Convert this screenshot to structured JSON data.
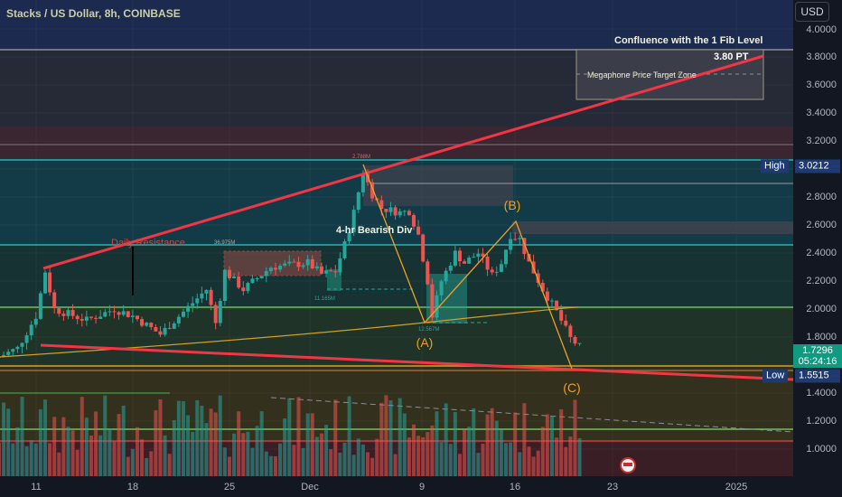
{
  "header": {
    "title": "Stacks / US Dollar, 8h, COINBASE",
    "currency_button": "USD"
  },
  "price_axis": {
    "ticks": [
      "4.0000",
      "3.8000",
      "3.6000",
      "3.4000",
      "3.2000",
      "2.8000",
      "2.6000",
      "2.4000",
      "2.2000",
      "2.0000",
      "1.8000",
      "1.4000",
      "1.2000",
      "1.0000"
    ],
    "high_label": "High",
    "high_value": "3.0212",
    "low_label": "Low",
    "low_value": "1.5515",
    "last_price": "1.7296",
    "countdown": "05:24:16"
  },
  "time_axis": {
    "ticks": [
      "11",
      "18",
      "25",
      "Dec",
      "9",
      "16",
      "23",
      "2025"
    ]
  },
  "annotations": {
    "confluence": "Confluence with the 1 Fib Level",
    "pt": "3.80 PT",
    "zone": "Megaphone Price Target Zone",
    "daily_resistance": "Daily Resistance",
    "bearish_div": "4-hr Bearish Div",
    "wave_a": "(A)",
    "wave_b": "(B)",
    "wave_c": "(C)",
    "vol_1": "2.788M",
    "vol_2": "36.975M",
    "vol_3": "11.165M",
    "vol_4": "12.567M"
  },
  "colors": {
    "up": "#26a69a",
    "down": "#ef5350",
    "trendline": "#f23645",
    "wave": "#f0a020",
    "accent": "#0f9b80"
  },
  "chart_data": {
    "type": "candlestick",
    "interval": "8h",
    "symbol": "STXUSD",
    "exchange": "COINBASE",
    "ylim": [
      0.9,
      4.1
    ],
    "price_path": [
      [
        "11-08 08",
        1.66
      ],
      [
        "11-09 16",
        1.72
      ],
      [
        "11-11 00",
        1.95
      ],
      [
        "11-11 16",
        2.27
      ],
      [
        "11-12 08",
        2.0
      ],
      [
        "11-14 16",
        1.92
      ],
      [
        "11-16 16",
        2.0
      ],
      [
        "11-18 00",
        1.95
      ],
      [
        "11-20 00",
        1.82
      ],
      [
        "11-21 16",
        1.98
      ],
      [
        "11-23 08",
        2.14
      ],
      [
        "11-24 00",
        1.9
      ],
      [
        "11-24 16",
        2.27
      ],
      [
        "11-26 00",
        2.14
      ],
      [
        "11-28 00",
        2.3
      ],
      [
        "11-30 16",
        2.33
      ],
      [
        "12-01 16",
        2.25
      ],
      [
        "12-02 16",
        2.27
      ],
      [
        "12-03 08",
        2.46
      ],
      [
        "12-04 00",
        2.69
      ],
      [
        "12-04 16",
        2.98
      ],
      [
        "12-05 08",
        2.82
      ],
      [
        "12-06 00",
        2.72
      ],
      [
        "12-07 08",
        2.69
      ],
      [
        "12-08 00",
        2.7
      ],
      [
        "12-08 16",
        2.53
      ],
      [
        "12-09 08",
        2.2
      ],
      [
        "12-09 16",
        1.95
      ],
      [
        "12-10 08",
        2.2
      ],
      [
        "12-11 08",
        2.4
      ],
      [
        "12-12 00",
        2.33
      ],
      [
        "12-13 00",
        2.4
      ],
      [
        "12-14 00",
        2.24
      ],
      [
        "12-14 16",
        2.33
      ],
      [
        "12-15 08",
        2.53
      ],
      [
        "12-16 00",
        2.5
      ],
      [
        "12-16 16",
        2.33
      ],
      [
        "12-17 16",
        2.14
      ],
      [
        "12-18 16",
        1.98
      ],
      [
        "12-19 16",
        1.79
      ],
      [
        "12-20 08",
        1.73
      ]
    ]
  }
}
